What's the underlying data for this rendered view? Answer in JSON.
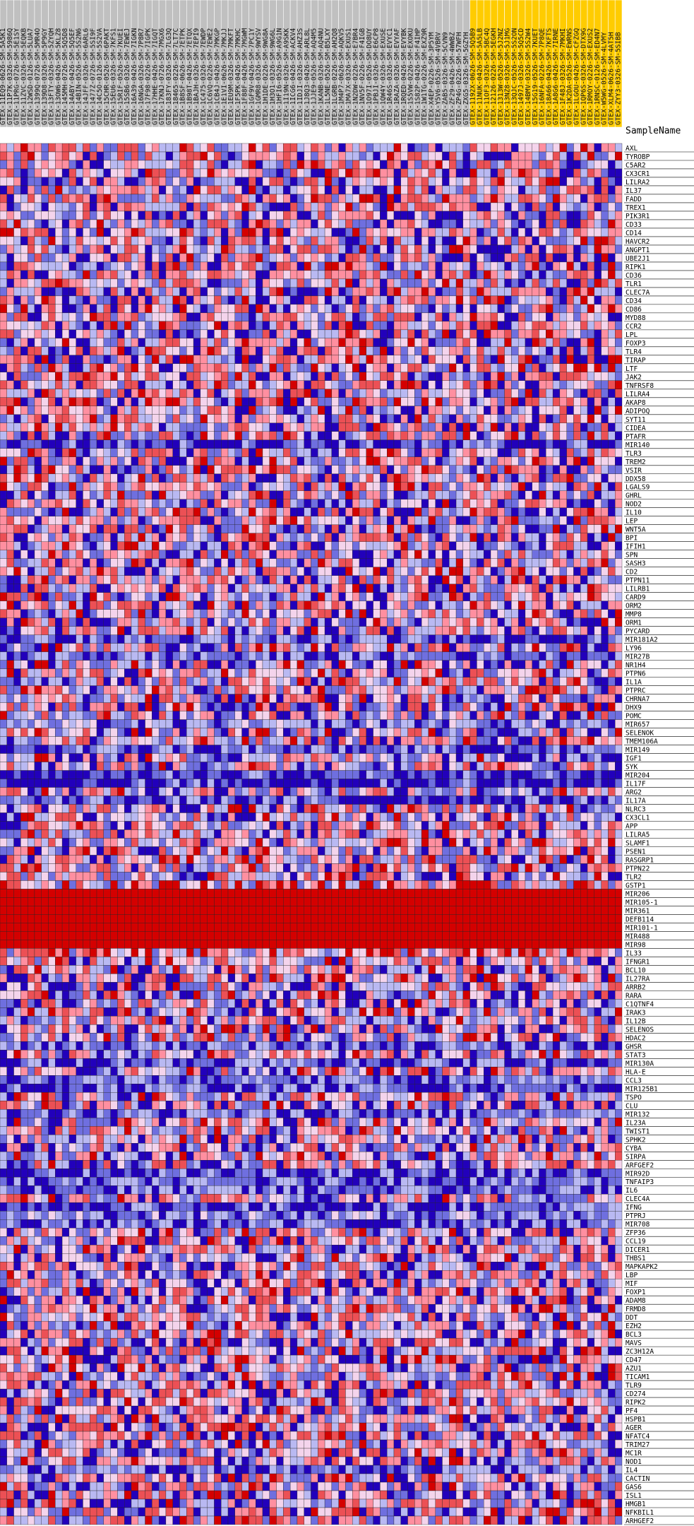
{
  "chart_data": {
    "type": "heatmap",
    "header_label": "SampleName",
    "colors": {
      "group_normal": "#c0c0c0",
      "group_case": "#ffcc00",
      "scale": [
        "#2200bb",
        "#6f6fdf",
        "#b9b9f2",
        "#f4d4ec",
        "#ff8fa0",
        "#ec5055",
        "#d40000"
      ],
      "grid": "#222222"
    },
    "samples": {
      "normal": [
        "GTEX-11EQ9-0626-SM-5A5K1",
        "GTEX-11P7K-0326-SM-5986Q",
        "GTEX-11PRG-0726-SM-5E1SY",
        "GTEX-11ZVC-0326-SM-5EQKB",
        "GTEX-12WSD-0126-SM-5LUA7",
        "GTEX-1399Q-0726-SM-5MR4O",
        "GTEX-139D8-0326-SM-5P9GY",
        "GTEX-13FTY-0326-SM-5ZYQH",
        "GTEX-13OW6-0426-SM-5KLZ8",
        "GTEX-145MH-0726-SM-5Q5D8",
        "GTEX-14ABY-0426-SM-5Q5EF",
        "GTEX-14BIN-0526-SM-5S2N6",
        "GTEX-14JFF-0326-SM-6ARL6",
        "GTEX-1477Z-0726-SM-5SI9F",
        "GTEX-14C5O-0126-SM-5S2VA",
        "GTEX-15CHR-0526-SM-6PAKT",
        "GTEX-15EU6-0326-SM-7KFS1",
        "GTEX-15RIF-0526-SM-7KUEI",
        "GTEX-15SB6-0326-SM-7EWEJ",
        "GTEX-16A39-0426-SM-7IGKN",
        "GTEX-16NGA-0326-SM-7P8R7",
        "GTEX-17F98-0226-SM-7IGPK",
        "GTEX-17HHE-0426-SM-7IGQT",
        "GTEX-17KNJ-0726-SM-7MGX6",
        "GTEX-183FY-0326-SM-7LG3Q",
        "GTEX-18465-0226-SM-7LT7C",
        "GTEX-1B8SF-0626-SM-7ETPK",
        "GTEX-1B98T-0426-SM-7ETQX",
        "GTEX-1BAJH-0326-SM-7EPI9",
        "GTEX-1C475-0326-SM-7EWDP",
        "GTEX-1C6VQ-0226-SM-7EWE2",
        "GTEX-1CB4J-0426-SM-7MKGP",
        "GTEX-1E1VI-0626-SM-7MKJJ",
        "GTEX-1EU9M-0326-SM-7MKFT",
        "GTEX-1F5PK-0426-SM-7MKHC",
        "GTEX-1F88F-0426-SM-7MGWM",
        "GTEX-1GF9V-0426-SM-7PC1Y",
        "GTEX-1GMR8-0326-SM-9WYSV",
        "GTEX-1H1DE-0226-SM-9WG8A",
        "GTEX-1H3O1-0326-SM-9WG6L",
        "GTEX-1HFI6-0526-SM-A9G1N",
        "GTEX-1I19N-0326-SM-A9SKK",
        "GTEX-1ICG6-0426-SM-ACKV4",
        "GTEX-1IDJI-0326-SM-AHZ3S",
        "GTEX-1J8Q3-0426-SM-ARL8L",
        "GTEX-1JJE9-0526-SM-AQ4M5",
        "GTEX-1KANB-0326-SM-AQ4NU",
        "GTEX-1L5NE-0526-SM-B5LXY",
        "GTEX-1LGRB-0226-SM-AH2Q8",
        "GTEX-1M4P7-0626-SM-AQKV5",
        "GTEX-1MA7X-0326-SM-EXUS1",
        "GTEX-1N2DW-0226-SM-E7BR4",
        "GTEX-1NV5F-0226-SM-F4IGB",
        "GTEX-1O97I-0526-SM-DO8UY",
        "GTEX-1PBJI-0326-SM-E6CP8",
        "GTEX-1QW4Y-0326-SM-EXUSE",
        "GTEX-1R46S-0326-SM-EVYC1",
        "GTEX-1RAZA-0326-SM-EVYAF",
        "GTEX-1RQED-0426-SM-EVYBK",
        "GTEX-1S5VW-0226-SM-EXOKU",
        "GTEX-1S82P-0426-SM-F4IHP",
        "GTEX-1W1TG-0226-SM-EXZ9R",
        "GTEX-X4EP-0226-SM-3P5YM",
        "GTEX-Y5V6-0526-SM-4VBRV",
        "GTEX-ZAB5-0326-SM-5CVN9",
        "GTEX-ZF29-0426-SM-4WWBZ",
        "GTEX-ZP4G-0226-SM-57WFH",
        "GTEX-ZXG5-0326-SM-5GZYH"
      ],
      "case": [
        "GTEX-1192X-0626-SM-5Q5B9",
        "GTEX-11NUK-0426-SM-5A5LB",
        "GTEX-11OF3-0326-SM-5BC4Q",
        "GTEX-12126-0226-SM-5EGKH",
        "GTEX-1313W-0526-SM-5J2NZ",
        "GTEX-13NZ8-0326-SM-5J1MG",
        "GTEX-13QJC-0526-SM-5S2ON",
        "GTEX-1497J-0326-SM-5Q5CD",
        "GTEX-14BMV-0326-SM-5S2W4",
        "GTEX-15G19-0526-SM-7KUET",
        "GTEX-16NFA-0226-SM-7P8QE",
        "GTEX-18A66-0426-SM-7KFTS",
        "GTEX-1A8G6-0426-SM-7IRNE",
        "GTEX-1F48J-0326-SM-7MKHI",
        "GTEX-1K2DA-0526-SM-EWRNS",
        "GTEX-1LGOU-0426-SM-CFZGQ",
        "GTEX-1QP6S-0326-SM-DTX9G",
        "GTEX-1RMOY-0226-SM-EXUS2",
        "GTEX-1RNSC-0126-SM-ED4N7",
        "GTEX-W5WG-0526-SM-4LVMY",
        "GTEX-XLM4-0626-SM-4AT5H",
        "GTEX-ZYY3-0326-SM-5SIBB"
      ]
    },
    "genes": [
      "AXL",
      "TYROBP",
      "C5AR2",
      "CX3CR1",
      "LILRA2",
      "IL37",
      "FADD",
      "TREX1",
      "PIK3R1",
      "CD33",
      "CD14",
      "HAVCR2",
      "ANGPT1",
      "UBE2J1",
      "RIPK1",
      "CD36",
      "TLR1",
      "CLEC7A",
      "CD34",
      "CD86",
      "MYD88",
      "CCR2",
      "LPL",
      "FOXP3",
      "TLR4",
      "TIRAP",
      "LTF",
      "JAK2",
      "TNFRSF8",
      "LILRA4",
      "AKAP8",
      "ADIPOQ",
      "SYT11",
      "CIDEA",
      "PTAFR",
      "MIR140",
      "TLR3",
      "TREM2",
      "VSIR",
      "DDX58",
      "LGALS9",
      "GHRL",
      "NOD2",
      "IL10",
      "LEP",
      "WNT5A",
      "BPI",
      "IFIH1",
      "SPN",
      "SASH3",
      "CD2",
      "PTPN11",
      "LILRB1",
      "CARD9",
      "ORM2",
      "MMP8",
      "ORM1",
      "PYCARD",
      "MIR181A2",
      "LY96",
      "MIR27B",
      "NR1H4",
      "PTPN6",
      "IL1A",
      "PTPRC",
      "CHRNA7",
      "DHX9",
      "POMC",
      "MIR657",
      "SELENOK",
      "TMEM106A",
      "MIR149",
      "IGF1",
      "SYK",
      "MIR204",
      "IL17F",
      "ARG2",
      "IL17A",
      "NLRC3",
      "CX3CL1",
      "APP",
      "LILRA5",
      "SLAMF1",
      "PSEN1",
      "RASGRP1",
      "PTPN22",
      "TLR2",
      "GSTP1",
      "MIR206",
      "MIR105-1",
      "MIR361",
      "DEFB114",
      "MIR101-1",
      "MIR488",
      "MIR98",
      "IL33",
      "IFNGR1",
      "BCL10",
      "IL27RA",
      "ARRB2",
      "RARA",
      "C1QTNF4",
      "IRAK3",
      "IL12B",
      "SELENOS",
      "HDAC2",
      "GHSR",
      "STAT3",
      "MIR130A",
      "HLA-E",
      "CCL3",
      "MIR125B1",
      "TSPO",
      "CLU",
      "MIR132",
      "IL23A",
      "TWIST1",
      "SPHK2",
      "CYBA",
      "SIRPA",
      "ARFGEF2",
      "MIR92D",
      "TNFAIP3",
      "IL6",
      "CLEC4A",
      "IFNG",
      "PTPRJ",
      "MIR708",
      "ZFP36",
      "CCL19",
      "DICER1",
      "THBS1",
      "MAPKAPK2",
      "LBP",
      "MIF",
      "FOXP1",
      "ADAM8",
      "FRMD8",
      "DDT",
      "EZH2",
      "BCL3",
      "MAVS",
      "ZC3H12A",
      "CD47",
      "AZU1",
      "TICAM1",
      "TLR9",
      "CD274",
      "RIPK2",
      "PF4",
      "HSPB1",
      "AGER",
      "NFATC4",
      "TRIM27",
      "MC1R",
      "NOD1",
      "IL4",
      "CACTIN",
      "GAS6",
      "ISL1",
      "HMGB1",
      "NFKBIL1",
      "ARHGEF2"
    ],
    "row_profile": {
      "note_levels": "mean expression level per gene row on a 0-6 scale (0 = lowest/blue, 6 = highest/red)",
      "MIR140": 0.6,
      "MIR181A2": 0.8,
      "MIR27B": 1.0,
      "MIR657": 1.3,
      "MIR149": 0.8,
      "MIR204": 0.3,
      "IL17F": 0.4,
      "IL17A": 0.6,
      "GHSR": 0.9,
      "MIR130A": 0.9,
      "CCL3": 1.0,
      "MIR125B1": 0.8,
      "MIR132": 0.9,
      "MIR92D": 0.5,
      "TNFAIP3": 1.0,
      "IL6": 1.0,
      "IFNG": 0.7,
      "PTPRJ": 1.4,
      "MIR708": 0.9,
      "IL4": 1.0,
      "MIR98": 6.0,
      "MIR206": 6.0,
      "MIR105-1": 6.0,
      "MIR361": 6.0,
      "DEFB114": 6.0,
      "MIR101-1": 6.0,
      "MIR488": 6.0,
      "GSTP1": 4.0,
      "IL33": 3.8,
      "AXL": 3.0
    }
  }
}
